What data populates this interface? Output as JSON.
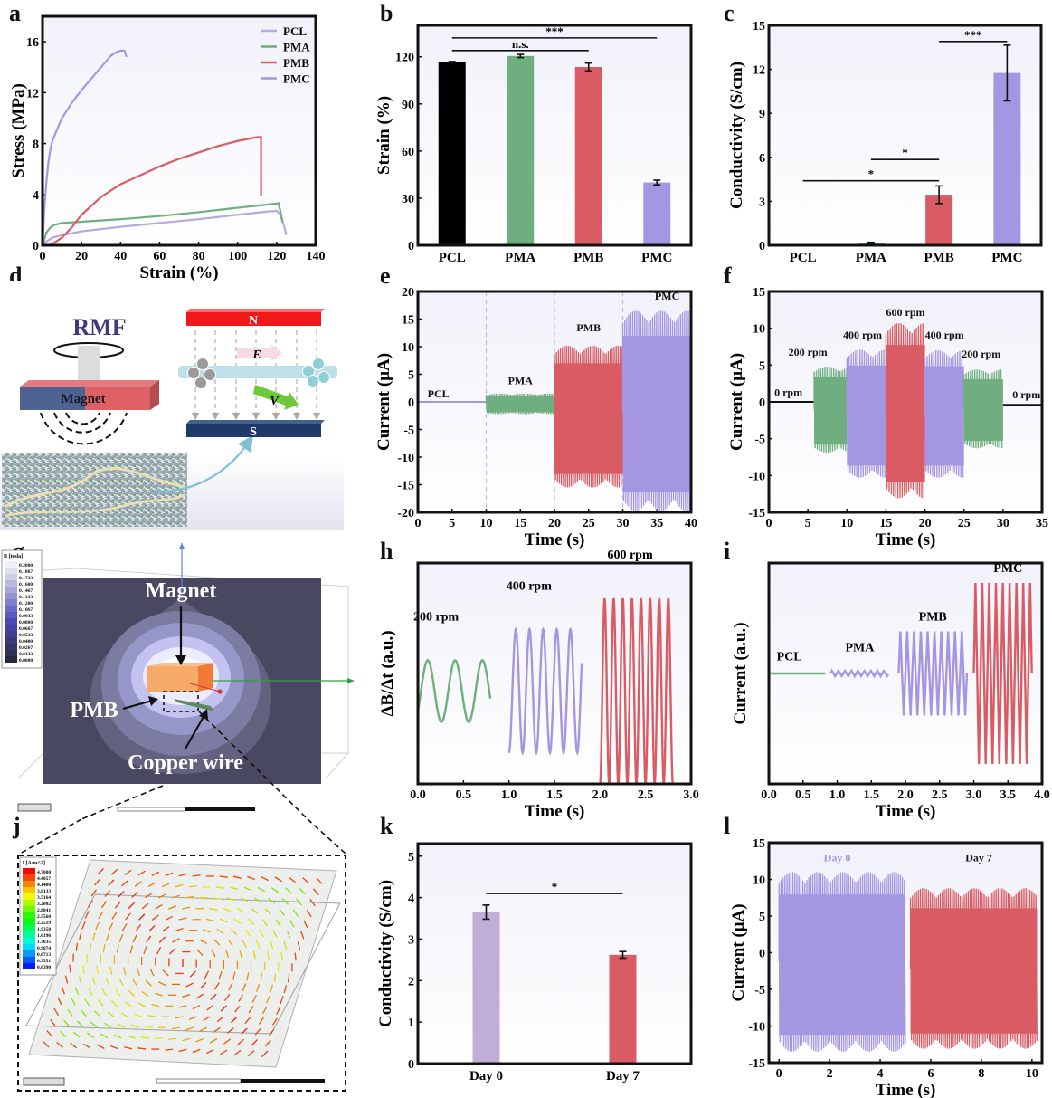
{
  "panel_labels": {
    "a": "a",
    "b": "b",
    "c": "c",
    "d": "d",
    "e": "e",
    "f": "f",
    "g": "g",
    "h": "h",
    "i": "i",
    "j": "j",
    "k": "k",
    "l": "l"
  },
  "colors": {
    "PCL_line": "#b4a9e0",
    "PMA": "#6fae7f",
    "PMB": "#d95c64",
    "PMC": "#a596e2",
    "PCL_bar": "#000000",
    "day0_bar": "#bfaed6",
    "plot_bg": "#f1f1fa"
  },
  "diagram_d": {
    "rmf_label": "RMF",
    "magnet_label": "Magnet",
    "north_label": "N",
    "south_label": "S",
    "e_field_label": "E",
    "velocity_label": "V"
  },
  "simulation_g": {
    "legend_title": "B [tesla]",
    "legend_values": [
      "0.2000",
      "0.1867",
      "0.1733",
      "0.1600",
      "0.1467",
      "0.1333",
      "0.1200",
      "0.1067",
      "0.0933",
      "0.0800",
      "0.0667",
      "0.0533",
      "0.0400",
      "0.0267",
      "0.0133",
      "0.0000"
    ],
    "magnet_label": "Magnet",
    "pmb_label": "PMB",
    "copper_label": "Copper wire"
  },
  "simulation_j": {
    "legend_title": "J [A/m^2]",
    "legend_values": [
      "4.7000",
      "4.4057",
      "4.1400",
      "3.8133",
      "3.5164",
      "3.2002",
      "2.8841",
      "2.5560",
      "2.2519",
      "1.9358",
      "1.6196",
      "1.3035",
      "0.9874",
      "0.6713",
      "0.3551",
      "0.0390"
    ]
  },
  "chart_data": [
    {
      "id": "a",
      "type": "line",
      "title": "",
      "xlabel": "Strain (%)",
      "ylabel": "Stress (MPa)",
      "xlim": [
        0,
        140
      ],
      "ylim": [
        0,
        18
      ],
      "xticks": [
        "0",
        "20",
        "40",
        "60",
        "80",
        "100",
        "120",
        "140"
      ],
      "yticks": [
        "0",
        "4",
        "8",
        "12",
        "16"
      ],
      "legend_position": "top-right",
      "series": [
        {
          "name": "PCL",
          "color": "#b4a9e0",
          "x": [
            0,
            2,
            5,
            10,
            20,
            40,
            60,
            80,
            100,
            115,
            120,
            122,
            124,
            125
          ],
          "y": [
            0,
            0.3,
            0.6,
            0.8,
            1.1,
            1.45,
            1.75,
            2.05,
            2.4,
            2.65,
            2.7,
            2.4,
            1.4,
            0.8
          ]
        },
        {
          "name": "PMA",
          "color": "#6fae7f",
          "x": [
            0,
            1,
            2,
            4,
            6,
            10,
            20,
            40,
            60,
            80,
            100,
            115,
            121,
            122,
            123
          ],
          "y": [
            0,
            0.5,
            1.0,
            1.4,
            1.6,
            1.75,
            1.85,
            2.05,
            2.3,
            2.6,
            2.95,
            3.2,
            3.3,
            2.6,
            1.8
          ]
        },
        {
          "name": "PMB",
          "color": "#d95c64",
          "x": [
            3,
            5,
            10,
            15,
            20,
            30,
            40,
            50,
            60,
            70,
            80,
            90,
            100,
            110,
            112,
            112
          ],
          "y": [
            0,
            0.1,
            0.6,
            1.4,
            2.4,
            3.8,
            4.8,
            5.5,
            6.2,
            6.8,
            7.3,
            7.8,
            8.2,
            8.5,
            8.5,
            3.9
          ]
        },
        {
          "name": "PMC",
          "color": "#a596e2",
          "x": [
            0,
            0.5,
            1,
            2,
            3,
            4,
            5,
            8,
            10,
            15,
            20,
            25,
            30,
            35,
            38,
            40,
            42,
            43
          ],
          "y": [
            0,
            1.5,
            3,
            5,
            6.5,
            7.5,
            8.2,
            9.3,
            10,
            11.2,
            12.2,
            13.1,
            14,
            14.9,
            15.2,
            15.3,
            15.3,
            14.8
          ]
        }
      ]
    },
    {
      "id": "b",
      "type": "bar",
      "title": "",
      "xlabel": "",
      "ylabel": "Strain (%)",
      "ylim": [
        0,
        140
      ],
      "yticks": [
        "0",
        "30",
        "60",
        "90",
        "120"
      ],
      "categories": [
        "PCL",
        "PMA",
        "PMB",
        "PMC"
      ],
      "values": [
        116.5,
        120.5,
        113.5,
        40
      ],
      "errors": [
        0.5,
        1.0,
        2.5,
        1.5
      ],
      "colors": [
        "#000000",
        "#6fae7f",
        "#d95c64",
        "#a596e2"
      ],
      "significance": [
        {
          "from": 0,
          "to": 2,
          "label": "n.s.",
          "y": 124
        },
        {
          "from": 0,
          "to": 3,
          "label": "***",
          "y": 132
        }
      ]
    },
    {
      "id": "c",
      "type": "bar",
      "title": "",
      "xlabel": "",
      "ylabel": "Conductivity (S/cm)",
      "ylim": [
        0,
        15
      ],
      "yticks": [
        "0",
        "3",
        "6",
        "9",
        "12",
        "15"
      ],
      "categories": [
        "PCL",
        "PMA",
        "PMB",
        "PMC"
      ],
      "values": [
        0,
        0.15,
        3.45,
        11.75
      ],
      "errors": [
        0,
        0.05,
        0.6,
        1.9
      ],
      "colors": [
        "#000000",
        "#6fae7f",
        "#d95c64",
        "#a596e2"
      ],
      "significance": [
        {
          "from": 0,
          "to": 2,
          "label": "*",
          "y": 4.4
        },
        {
          "from": 1,
          "to": 2,
          "label": "*",
          "y": 5.85
        },
        {
          "from": 2,
          "to": 3,
          "label": "***",
          "y": 13.9
        }
      ]
    },
    {
      "id": "e",
      "type": "line",
      "title": "",
      "xlabel": "Time (s)",
      "ylabel": "Current (μA)",
      "xlim": [
        0,
        40
      ],
      "ylim": [
        -20,
        20
      ],
      "xticks": [
        "0",
        "5",
        "10",
        "15",
        "20",
        "25",
        "30",
        "35",
        "40"
      ],
      "yticks": [
        "-20",
        "-15",
        "-10",
        "-5",
        "0",
        "5",
        "10",
        "15",
        "20"
      ],
      "dividers": [
        10,
        20,
        30
      ],
      "segments": [
        {
          "name": "PCL",
          "color": "#a596e2",
          "t": [
            0,
            10
          ],
          "max": 0,
          "min": 0,
          "label_x": 3,
          "label_y": 0.8
        },
        {
          "name": "PMA",
          "color": "#6fae7f",
          "t": [
            10,
            20
          ],
          "max": 1.5,
          "min": -2.2,
          "label_x": 15,
          "label_y": 3.2
        },
        {
          "name": "PMB",
          "color": "#d95c64",
          "t": [
            20,
            30
          ],
          "max": 10.2,
          "min": -15.5,
          "label_x": 25,
          "label_y": 12.8
        },
        {
          "name": "PMC",
          "color": "#a596e2",
          "t": [
            30,
            40
          ],
          "max": 16.5,
          "min": -19.8,
          "label_x": 36.5,
          "label_y": 18.5
        }
      ]
    },
    {
      "id": "f",
      "type": "line",
      "title": "",
      "xlabel": "Time (s)",
      "ylabel": "Current (μA)",
      "xlim": [
        0,
        35
      ],
      "ylim": [
        -15,
        15
      ],
      "xticks": [
        "0",
        "5",
        "10",
        "15",
        "20",
        "25",
        "30",
        "35"
      ],
      "yticks": [
        "-15",
        "-10",
        "-5",
        "0",
        "5",
        "10",
        "15"
      ],
      "segments": [
        {
          "name": "0 rpm",
          "color": "#111111",
          "t": [
            0,
            5.8
          ],
          "max": 0,
          "min": 0,
          "label_x": 2.5,
          "label_y": 0.8
        },
        {
          "name": "200 rpm",
          "color": "#6fae7f",
          "t": [
            5.8,
            10
          ],
          "max": 4.8,
          "min": -6.9,
          "label_x": 5.0,
          "label_y": 6.3
        },
        {
          "name": "400 rpm",
          "color": "#a596e2",
          "t": [
            10,
            15
          ],
          "max": 7.1,
          "min": -10.3,
          "label_x": 12,
          "label_y": 8.6
        },
        {
          "name": "600 rpm",
          "color": "#d95c64",
          "t": [
            15,
            20
          ],
          "max": 10.7,
          "min": -13.1,
          "label_x": 17.5,
          "label_y": 11.7
        },
        {
          "name": "400 rpm",
          "color": "#a596e2",
          "t": [
            20,
            25
          ],
          "max": 7.0,
          "min": -10.3,
          "label_x": 22.5,
          "label_y": 8.6
        },
        {
          "name": "200 rpm",
          "color": "#6fae7f",
          "t": [
            25,
            30
          ],
          "max": 4.4,
          "min": -6.3,
          "label_x": 27.2,
          "label_y": 6.0
        },
        {
          "name": "0 rpm",
          "color": "#111111",
          "t": [
            30,
            35
          ],
          "max": -0.4,
          "min": -0.4,
          "label_x": 33,
          "label_y": 0.5
        }
      ]
    },
    {
      "id": "h",
      "type": "line",
      "title": "",
      "xlabel": "Time (s)",
      "ylabel": "ΔB/Δt (a.u.)",
      "xlim": [
        0,
        3
      ],
      "ylim": [
        0,
        1
      ],
      "xticks": [
        "0.0",
        "0.5",
        "1.0",
        "1.5",
        "2.0",
        "2.5",
        "3.0"
      ],
      "yticks": [],
      "series": [
        {
          "name": "200 rpm",
          "color": "#6fae7f",
          "t": [
            0,
            0.8
          ],
          "period": 0.3,
          "center": 0.42,
          "amp": 0.14,
          "phase": -0.7,
          "label_x": 0.2,
          "label_y": 0.74
        },
        {
          "name": "400 rpm",
          "color": "#a596e2",
          "t": [
            1,
            1.8
          ],
          "period": 0.15,
          "center": 0.42,
          "amp": 0.28,
          "phase": -1.57,
          "label_x": 1.22,
          "label_y": 0.88
        },
        {
          "name": "600 rpm",
          "color": "#d95c64",
          "t": [
            2,
            2.8
          ],
          "period": 0.1,
          "center": 0.42,
          "amp": 0.42,
          "phase": -1.57,
          "label_x": 2.33,
          "label_y": 1.02
        }
      ]
    },
    {
      "id": "i",
      "type": "line",
      "title": "",
      "xlabel": "Time (s)",
      "ylabel": "Current (a.u.)",
      "xlim": [
        0,
        4
      ],
      "ylim": [
        0,
        1
      ],
      "xticks": [
        "0.0",
        "0.5",
        "1.0",
        "1.5",
        "2.0",
        "2.5",
        "3.0",
        "3.5",
        "4.0"
      ],
      "yticks": [],
      "series": [
        {
          "name": "PCL",
          "color": "#6fae7f",
          "t": [
            0,
            0.83
          ],
          "period": 1,
          "center": 0.5,
          "amp": 0,
          "label_x": 0.3,
          "label_y": 0.56
        },
        {
          "name": "PMA",
          "color": "#a596e2",
          "t": [
            0.9,
            1.75
          ],
          "period": 0.095,
          "center": 0.5,
          "amp": 0.012,
          "label_x": 1.33,
          "label_y": 0.6
        },
        {
          "name": "PMB",
          "color": "#a596e2",
          "t": [
            1.9,
            2.9
          ],
          "period": 0.1,
          "center": 0.5,
          "amp": 0.19,
          "label_x": 2.4,
          "label_y": 0.74
        },
        {
          "name": "PMC",
          "color": "#d95c64",
          "t": [
            3.0,
            3.85
          ],
          "period": 0.1,
          "center": 0.5,
          "amp": 0.41,
          "label_x": 3.5,
          "label_y": 0.96
        }
      ]
    },
    {
      "id": "k",
      "type": "bar",
      "title": "",
      "xlabel": "",
      "ylabel": "Conductivity (S/cm)",
      "ylim": [
        0,
        5.3
      ],
      "yticks": [
        "0",
        "1",
        "2",
        "3",
        "4",
        "5"
      ],
      "categories": [
        "Day 0",
        "Day 7"
      ],
      "values": [
        3.65,
        2.62
      ],
      "errors": [
        0.17,
        0.08
      ],
      "colors": [
        "#bfaed6",
        "#d95c64"
      ],
      "significance": [
        {
          "from": 0,
          "to": 1,
          "label": "*",
          "y": 4.1
        }
      ]
    },
    {
      "id": "l",
      "type": "line",
      "title": "",
      "xlabel": "Time (s)",
      "ylabel": "Current (μA)",
      "xlim": [
        -0.4,
        10.4
      ],
      "ylim": [
        -15,
        15
      ],
      "xticks": [
        "0",
        "2",
        "4",
        "6",
        "8",
        "10"
      ],
      "yticks": [
        "-15",
        "-10",
        "-5",
        "0",
        "5",
        "10",
        "15"
      ],
      "segments": [
        {
          "name": "Day 0",
          "color": "#a596e2",
          "t": [
            0,
            5
          ],
          "max": 11,
          "min": -13.5,
          "label_x": 2.3,
          "label_y": 12.5
        },
        {
          "name": "Day 7",
          "color": "#d95c64",
          "t": [
            5.2,
            10.2
          ],
          "max": 8.8,
          "min": -13.1,
          "label_x": 7.9,
          "label_y": 12.5
        }
      ]
    }
  ]
}
